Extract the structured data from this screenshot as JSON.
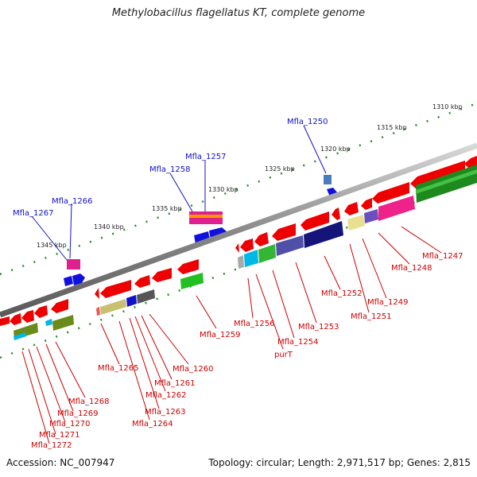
{
  "title": "Methylobacillus flagellatus KT, complete genome",
  "footer": {
    "accession": "Accession: NC_007947",
    "summary": "Topology: circular; Length: 2,971,517 bp; Genes: 2,815"
  },
  "scale": {
    "ticks": [
      "1310 kbp",
      "1315 kbp",
      "1320 kbp",
      "1325 kbp",
      "1330 kbp",
      "1335 kbp",
      "1340 kbp",
      "1345 kbp"
    ]
  },
  "colors": {
    "forward_label": "#1010c8",
    "reverse_label": "#cc0000",
    "backbone": "#808080",
    "tick": "#2a8a2a"
  },
  "genes": {
    "forward": [
      "Mfla_1250",
      "Mfla_1257",
      "Mfla_1258",
      "Mfla_1266",
      "Mfla_1267"
    ],
    "reverse": [
      "Mfla_1247",
      "Mfla_1248",
      "Mfla_1249",
      "Mfla_1251",
      "Mfla_1252",
      "Mfla_1253",
      "Mfla_1254",
      "purT",
      "Mfla_1256",
      "Mfla_1259",
      "Mfla_1260",
      "Mfla_1261",
      "Mfla_1262",
      "Mfla_1263",
      "Mfla_1264",
      "Mfla_1265",
      "Mfla_1268",
      "Mfla_1269",
      "Mfla_1270",
      "Mfla_1271",
      "Mfla_1272"
    ]
  }
}
